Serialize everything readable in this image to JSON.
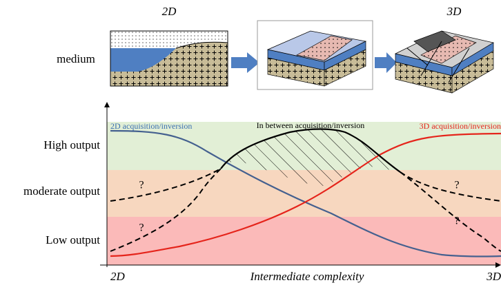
{
  "panels": {
    "left_title": "2D",
    "right_title": "3D",
    "row_label": "medium"
  },
  "curves": {
    "two_d": "2D acquisition/inversion",
    "between": "In between acquisition/inversion",
    "three_d": "3D acquisition/inversion"
  },
  "levels": [
    "High output",
    "moderate output",
    "Low output"
  ],
  "questions": [
    "?",
    "?",
    "?",
    "?"
  ],
  "x_axis": {
    "left": "2D",
    "middle": "Intermediate complexity",
    "right": "3D"
  }
}
